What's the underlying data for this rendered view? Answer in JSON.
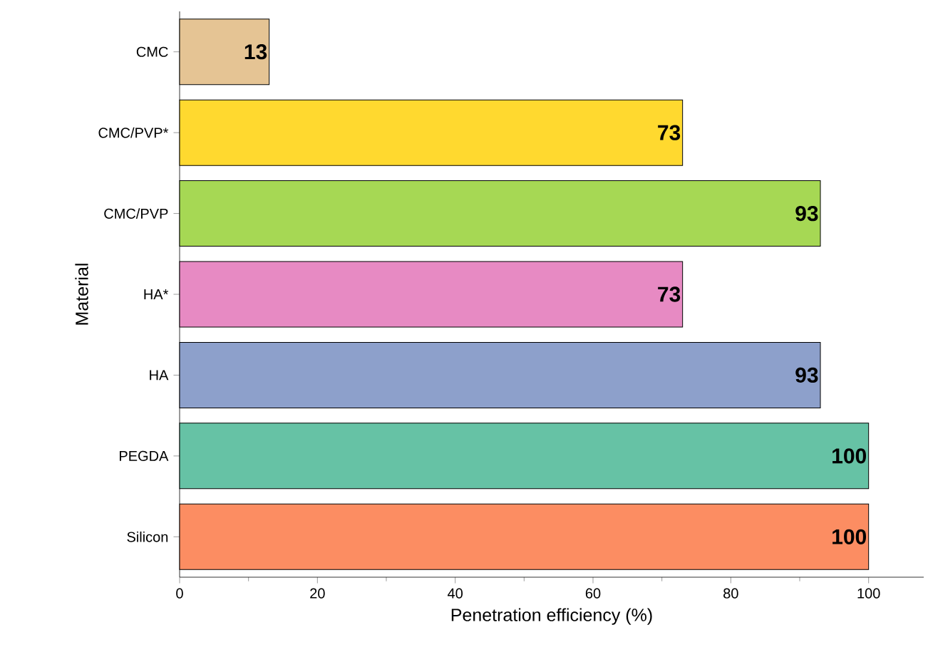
{
  "chart_data": {
    "type": "bar",
    "orientation": "horizontal",
    "xlabel": "Penetration efficiency (%)",
    "ylabel": "Material",
    "categories": [
      "CMC",
      "CMC/PVP*",
      "CMC/PVP",
      "HA*",
      "HA",
      "PEGDA",
      "Silicon"
    ],
    "values": [
      13,
      73,
      93,
      73,
      93,
      100,
      100
    ],
    "colors": [
      "#e5c494",
      "#ffd92f",
      "#a6d854",
      "#e78ac3",
      "#8da0cb",
      "#66c2a5",
      "#fc8d62"
    ],
    "xlim": [
      0,
      108
    ],
    "xticks": [
      0,
      20,
      40,
      60,
      80,
      100
    ],
    "data_labels": true
  }
}
